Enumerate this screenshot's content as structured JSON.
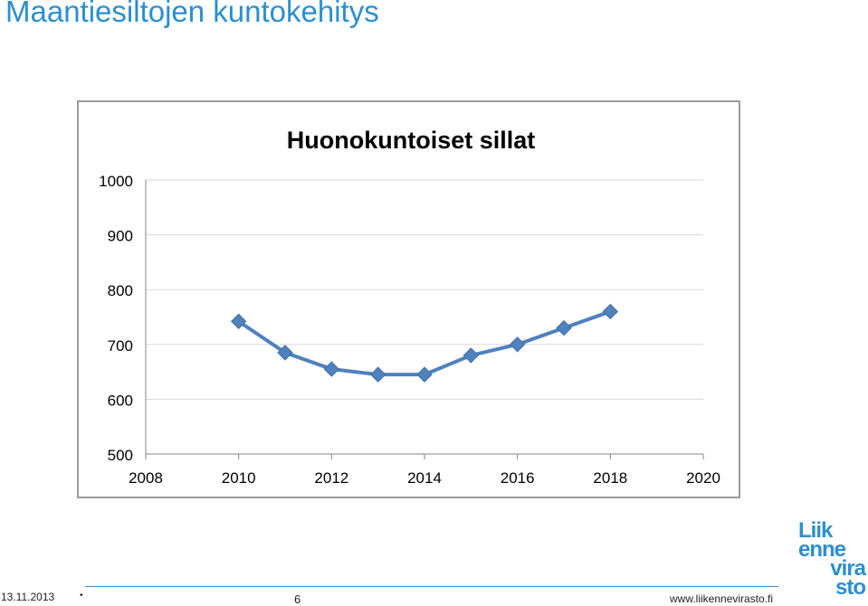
{
  "slide": {
    "title": "Maantiesiltojen kuntokehitys",
    "footer_date": "13.11.2013",
    "footer_bullet": "•",
    "footer_page": "6",
    "footer_url": "www.liikennevirasto.fi",
    "logo_lines": [
      "Liik",
      "enne",
      "vira",
      "sto"
    ]
  },
  "colors": {
    "title": "#2b8fd0",
    "series": "#4f81bd",
    "grid": "#d9d9d9",
    "logo": "#2b8fd0"
  },
  "chart_data": {
    "type": "line",
    "title": "Huonokuntoiset sillat",
    "xlabel": "",
    "ylabel": "",
    "xlim": [
      2008,
      2020
    ],
    "ylim": [
      500,
      1000
    ],
    "xticks": [
      2008,
      2010,
      2012,
      2014,
      2016,
      2018,
      2020
    ],
    "yticks": [
      500,
      600,
      700,
      800,
      900,
      1000
    ],
    "grid": true,
    "legend": "none",
    "series": [
      {
        "name": "",
        "x": [
          2010,
          2011,
          2012,
          2013,
          2014,
          2015,
          2016,
          2017,
          2018
        ],
        "y": [
          742,
          685,
          655,
          645,
          645,
          680,
          700,
          730,
          760
        ]
      }
    ]
  }
}
